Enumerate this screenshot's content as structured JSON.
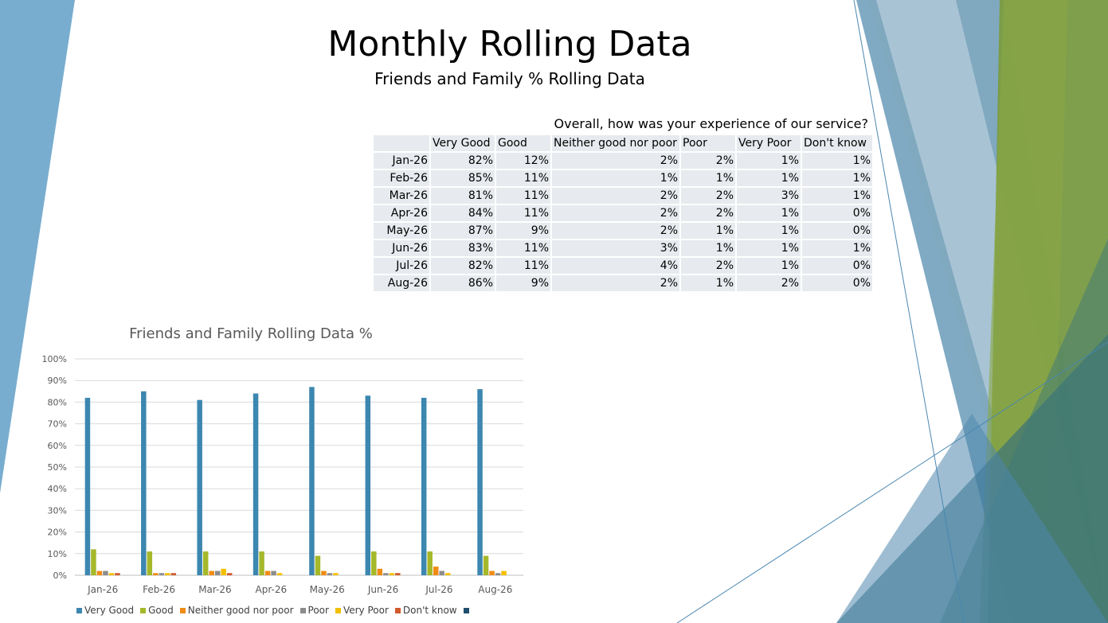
{
  "slide": {
    "title": "Monthly Rolling Data",
    "subtitle": "Friends and Family % Rolling Data"
  },
  "table": {
    "question": "Overall, how was your experience of our service?",
    "headers": [
      "",
      "Very Good",
      "Good",
      "Neither good nor poor",
      "Poor",
      "Very Poor",
      "Don't know"
    ],
    "rows": [
      [
        "Jan-26",
        "82%",
        "12%",
        "2%",
        "2%",
        "1%",
        "1%"
      ],
      [
        "Feb-26",
        "85%",
        "11%",
        "1%",
        "1%",
        "1%",
        "1%"
      ],
      [
        "Mar-26",
        "81%",
        "11%",
        "2%",
        "2%",
        "3%",
        "1%"
      ],
      [
        "Apr-26",
        "84%",
        "11%",
        "2%",
        "2%",
        "1%",
        "0%"
      ],
      [
        "May-26",
        "87%",
        "9%",
        "2%",
        "1%",
        "1%",
        "0%"
      ],
      [
        "Jun-26",
        "83%",
        "11%",
        "3%",
        "1%",
        "1%",
        "1%"
      ],
      [
        "Jul-26",
        "82%",
        "11%",
        "4%",
        "2%",
        "1%",
        "0%"
      ],
      [
        "Aug-26",
        "86%",
        "9%",
        "2%",
        "1%",
        "2%",
        "0%"
      ]
    ]
  },
  "chart_data": {
    "type": "bar",
    "title": "Friends and Family Rolling Data %",
    "categories": [
      "Jan-26",
      "Feb-26",
      "Mar-26",
      "Apr-26",
      "May-26",
      "Jun-26",
      "Jul-26",
      "Aug-26"
    ],
    "ylim": [
      0,
      100
    ],
    "yticks": [
      "0%",
      "10%",
      "20%",
      "30%",
      "40%",
      "50%",
      "60%",
      "70%",
      "80%",
      "90%",
      "100%"
    ],
    "grid": true,
    "legend_position": "bottom",
    "series": [
      {
        "name": "Very Good",
        "color": "#3c87b0",
        "values": [
          82,
          85,
          81,
          84,
          87,
          83,
          82,
          86
        ]
      },
      {
        "name": "Good",
        "color": "#a5b82a",
        "values": [
          12,
          11,
          11,
          11,
          9,
          11,
          11,
          9
        ]
      },
      {
        "name": "Neither good nor poor",
        "color": "#ee8c15",
        "values": [
          2,
          1,
          2,
          2,
          2,
          3,
          4,
          2
        ]
      },
      {
        "name": "Poor",
        "color": "#8c8c8c",
        "values": [
          2,
          1,
          2,
          2,
          1,
          1,
          2,
          1
        ]
      },
      {
        "name": "Very Poor",
        "color": "#f2c000",
        "values": [
          1,
          1,
          3,
          1,
          1,
          1,
          1,
          2
        ]
      },
      {
        "name": "Don't know",
        "color": "#d25a2b",
        "values": [
          1,
          1,
          1,
          0,
          0,
          1,
          0,
          0
        ]
      },
      {
        "name": "",
        "color": "#1f4e6e",
        "values": [
          0,
          0,
          0,
          0,
          0,
          0,
          0,
          0
        ]
      }
    ]
  }
}
